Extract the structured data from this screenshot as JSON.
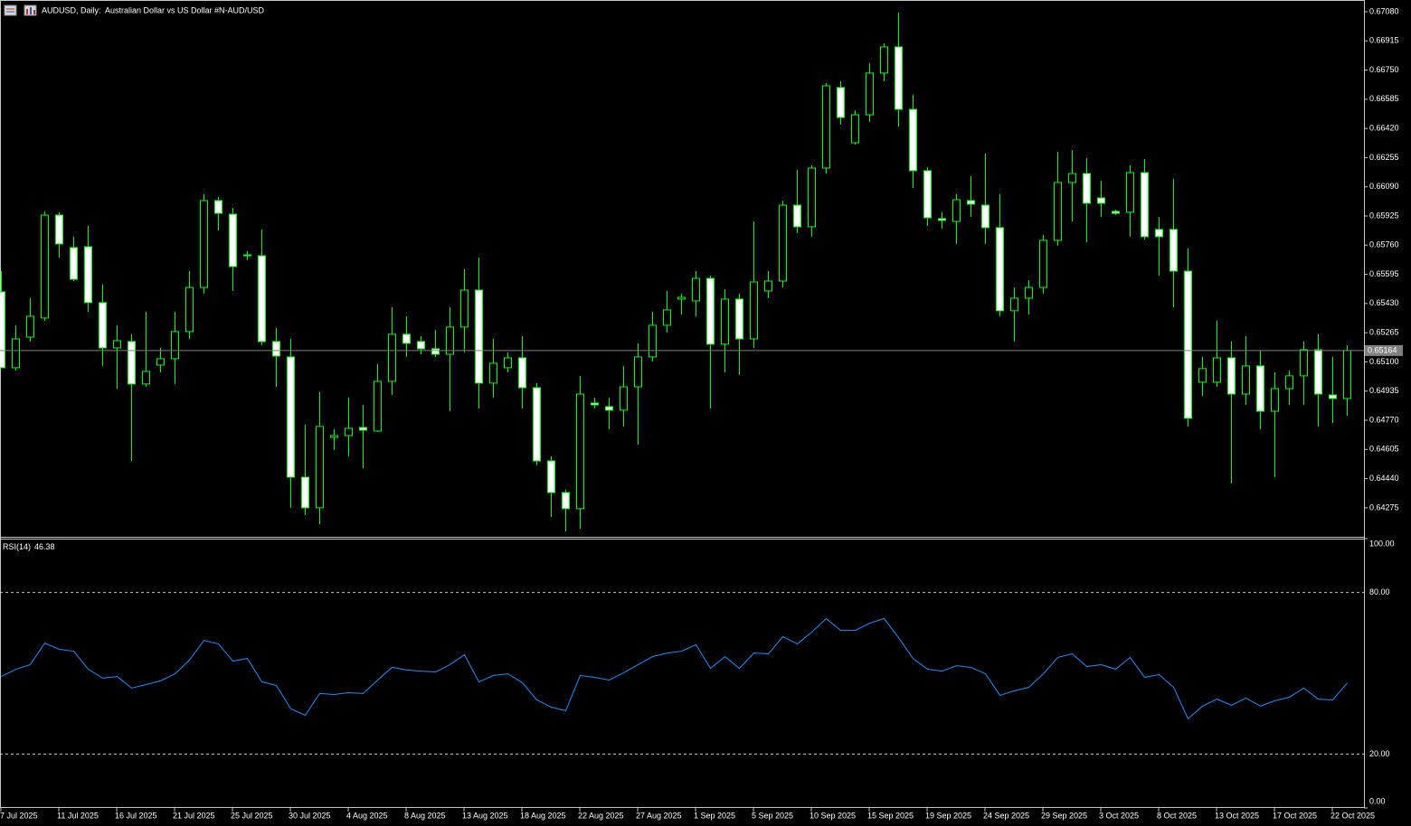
{
  "chart_data": [
    {
      "type": "candlestick",
      "title": "AUDUSD, Daily:  Australian Dollar vs US Dollar #N-AUD/USD",
      "categories": [
        "7 Jul 2025",
        null,
        null,
        null,
        "11 Jul 2025",
        null,
        null,
        null,
        "16 Jul 2025",
        null,
        null,
        null,
        "21 Jul 2025",
        null,
        null,
        null,
        "25 Jul 2025",
        null,
        null,
        null,
        "30 Jul 2025",
        null,
        null,
        null,
        "4 Aug 2025",
        null,
        null,
        null,
        "8 Aug 2025",
        null,
        null,
        null,
        "13 Aug 2025",
        null,
        null,
        null,
        "18 Aug 2025",
        null,
        null,
        null,
        "22 Aug 2025",
        null,
        null,
        null,
        "27 Aug 2025",
        null,
        null,
        null,
        "1 Sep 2025",
        null,
        null,
        null,
        "5 Sep 2025",
        null,
        null,
        null,
        "10 Sep 2025",
        null,
        null,
        null,
        "15 Sep 2025",
        null,
        null,
        null,
        "19 Sep 2025",
        null,
        null,
        null,
        "24 Sep 2025",
        null,
        null,
        null,
        "29 Sep 2025",
        null,
        null,
        null,
        "3 Oct 2025",
        null,
        null,
        null,
        "8 Oct 2025",
        null,
        null,
        null,
        "13 Oct 2025",
        null,
        null,
        null,
        "17 Oct 2025",
        null,
        null,
        null,
        "22 Oct 2025",
        null
      ],
      "open": [
        0.65496,
        0.65067,
        0.6524,
        0.65348,
        0.6593,
        0.65746,
        0.65751,
        0.65435,
        0.65179,
        0.65215,
        0.64975,
        0.65082,
        0.65118,
        0.65271,
        0.65521,
        0.66012,
        0.65935,
        0.657,
        0.657,
        0.65215,
        0.65128,
        0.64448,
        0.64275,
        0.64673,
        0.64683,
        0.64729,
        0.64709,
        0.6499,
        0.65256,
        0.65215,
        0.65174,
        0.65143,
        0.65297,
        0.65506,
        0.6498,
        0.65067,
        0.65123,
        0.64954,
        0.6454,
        0.64361,
        0.6427,
        0.64867,
        0.64847,
        0.64827,
        0.64959,
        0.65128,
        0.65307,
        0.65455,
        0.65445,
        0.65572,
        0.652,
        0.65455,
        0.6523,
        0.65501,
        0.65557,
        0.65986,
        0.65864,
        0.66196,
        0.66651,
        0.66339,
        0.66497,
        0.66733,
        0.66881,
        0.66528,
        0.66181,
        0.6591,
        0.65894,
        0.66012,
        0.65986,
        0.65859,
        0.65389,
        0.6546,
        0.65521,
        0.65787,
        0.66114,
        0.66165,
        0.66027,
        0.65951,
        0.65946,
        0.6617,
        0.65849,
        0.65849,
        0.65613,
        0.64985,
        0.64985,
        0.65123,
        0.64918,
        0.65077,
        0.64821,
        0.64949,
        0.65021,
        0.65169,
        0.64913,
        0.64893
      ],
      "high": [
        0.65613,
        0.65307,
        0.6546,
        0.65951,
        0.65946,
        0.65808,
        0.65869,
        0.65537,
        0.65307,
        0.65256,
        0.65383,
        0.65179,
        0.65383,
        0.65613,
        0.66048,
        0.66032,
        0.65971,
        0.65726,
        0.65849,
        0.65292,
        0.6523,
        0.64745,
        0.64929,
        0.64719,
        0.64898,
        0.64857,
        0.65087,
        0.65409,
        0.65358,
        0.65246,
        0.65281,
        0.65409,
        0.65624,
        0.6569,
        0.6523,
        0.65154,
        0.65246,
        0.6498,
        0.64566,
        0.64377,
        0.65021,
        0.64898,
        0.64898,
        0.65077,
        0.65205,
        0.65383,
        0.65501,
        0.65486,
        0.65613,
        0.65588,
        0.65511,
        0.65486,
        0.65894,
        0.65613,
        0.66012,
        0.66186,
        0.66211,
        0.66676,
        0.66687,
        0.66523,
        0.66789,
        0.66901,
        0.67075,
        0.6661,
        0.66201,
        0.65946,
        0.66048,
        0.6615,
        0.66278,
        0.66048,
        0.65521,
        0.65562,
        0.65818,
        0.66288,
        0.66298,
        0.66252,
        0.66124,
        0.65961,
        0.66211,
        0.66247,
        0.6592,
        0.66135,
        0.65741,
        0.65128,
        0.65332,
        0.65215,
        0.65246,
        0.65164,
        0.65041,
        0.65051,
        0.65215,
        0.65256,
        0.65128,
        0.65194
      ],
      "low": [
        0.65067,
        0.65051,
        0.65215,
        0.65332,
        0.6569,
        0.65557,
        0.65383,
        0.65077,
        0.64949,
        0.6454,
        0.64959,
        0.65041,
        0.64975,
        0.6523,
        0.65486,
        0.65843,
        0.65501,
        0.65675,
        0.65194,
        0.64959,
        0.64275,
        0.64234,
        0.64183,
        0.64602,
        0.64566,
        0.64499,
        0.64704,
        0.64913,
        0.65128,
        0.65143,
        0.65128,
        0.64821,
        0.65154,
        0.64837,
        0.64898,
        0.65041,
        0.64837,
        0.64515,
        0.64224,
        0.64142,
        0.64157,
        0.64837,
        0.64719,
        0.64735,
        0.64632,
        0.65102,
        0.65266,
        0.65368,
        0.65358,
        0.64837,
        0.65041,
        0.65026,
        0.65179,
        0.6546,
        0.65521,
        0.65828,
        0.65808,
        0.66165,
        0.66441,
        0.66329,
        0.66457,
        0.66687,
        0.66431,
        0.66084,
        0.65869,
        0.65854,
        0.65767,
        0.6592,
        0.65767,
        0.65358,
        0.65215,
        0.65368,
        0.65486,
        0.65757,
        0.65894,
        0.65777,
        0.6592,
        0.6593,
        0.65808,
        0.65792,
        0.65588,
        0.65409,
        0.64735,
        0.64908,
        0.64959,
        0.64413,
        0.64857,
        0.64719,
        0.64448,
        0.64857,
        0.64857,
        0.64735,
        0.64755,
        0.64796
      ],
      "close": [
        0.65067,
        0.6523,
        0.65358,
        0.6593,
        0.65767,
        0.65567,
        0.65435,
        0.65179,
        0.6522,
        0.64975,
        0.65046,
        0.65118,
        0.65271,
        0.65521,
        0.66012,
        0.6594,
        0.65639,
        0.65705,
        0.65215,
        0.65133,
        0.64448,
        0.64275,
        0.64735,
        0.64683,
        0.64724,
        0.64714,
        0.6499,
        0.65256,
        0.65205,
        0.65174,
        0.65143,
        0.65297,
        0.65506,
        0.6498,
        0.65092,
        0.65123,
        0.64954,
        0.6454,
        0.64361,
        0.6427,
        0.64918,
        0.64857,
        0.64827,
        0.64959,
        0.65128,
        0.65307,
        0.65394,
        0.65465,
        0.65572,
        0.652,
        0.65455,
        0.6523,
        0.65552,
        0.65557,
        0.65986,
        0.65864,
        0.66196,
        0.66661,
        0.66482,
        0.66497,
        0.66733,
        0.66881,
        0.66528,
        0.66181,
        0.65915,
        0.659,
        0.66017,
        0.65992,
        0.65859,
        0.65389,
        0.6546,
        0.65521,
        0.65787,
        0.66114,
        0.66165,
        0.65997,
        0.65997,
        0.6594,
        0.6617,
        0.65808,
        0.65808,
        0.65613,
        0.64781,
        0.65062,
        0.65123,
        0.64918,
        0.65077,
        0.64821,
        0.64949,
        0.65021,
        0.65169,
        0.64918,
        0.64893,
        0.65164
      ],
      "current_price": 0.65164,
      "ylim": [
        0.64116,
        0.67136
      ],
      "yticks": [
        {
          "value": 0.6708,
          "label": "0.67080"
        },
        0.66915,
        {
          "value": 0.6675,
          "label": "0.66750"
        },
        0.66585,
        {
          "value": 0.6642,
          "label": "0.66420"
        },
        0.66255,
        {
          "value": 0.6609,
          "label": "0.66090"
        },
        0.65925,
        {
          "value": 0.6576,
          "label": "0.65760"
        },
        0.65595,
        {
          "value": 0.6543,
          "label": "0.65430"
        },
        0.65265,
        {
          "value": 0.651,
          "label": "0.65100"
        },
        0.64935,
        {
          "value": 0.6477,
          "label": "0.64770"
        },
        0.64605,
        {
          "value": 0.6444,
          "label": "0.64440"
        },
        0.64275
      ],
      "wick_color": "#00ff00",
      "up_color": "#000000",
      "down_color": "#ffffff",
      "price_line_color": "#808080"
    },
    {
      "type": "line",
      "title": "RSI(14)",
      "values": [
        48.8,
        51.5,
        53.2,
        61.2,
        58.9,
        58.2,
        51.5,
        48.2,
        48.8,
        44.5,
        45.8,
        47.2,
        49.8,
        54.9,
        62.2,
        60.9,
        54.5,
        55.5,
        46.8,
        45.5,
        36.8,
        34.4,
        42.5,
        42.1,
        42.8,
        42.5,
        47.5,
        52.2,
        51.2,
        50.8,
        50.5,
        53.2,
        56.9,
        46.8,
        49.2,
        49.8,
        46.5,
        40.1,
        37.4,
        36.1,
        49.2,
        48.5,
        47.5,
        50.2,
        53.2,
        56.2,
        57.5,
        58.2,
        60.6,
        51.8,
        56.2,
        51.8,
        57.5,
        57.2,
        63.6,
        60.9,
        65.3,
        70.3,
        65.9,
        65.9,
        68.6,
        70.3,
        63.2,
        55.5,
        51.5,
        50.8,
        52.8,
        52.2,
        49.8,
        41.8,
        43.5,
        44.8,
        49.8,
        55.9,
        57.2,
        52.5,
        53.2,
        51.5,
        55.9,
        48.5,
        49.5,
        44.8,
        33.1,
        37.8,
        40.4,
        38.1,
        40.8,
        37.8,
        39.8,
        41.1,
        44.5,
        40.4,
        40.1,
        46.38
      ],
      "color": "#1e90ff",
      "ylim": [
        0,
        100
      ],
      "yticks": [
        {
          "value": 100,
          "label": "100.00"
        },
        {
          "value": 80,
          "label": "80.00"
        },
        {
          "value": 20,
          "label": "20.00"
        },
        {
          "value": 0,
          "label": "0.00"
        }
      ]
    }
  ]
}
